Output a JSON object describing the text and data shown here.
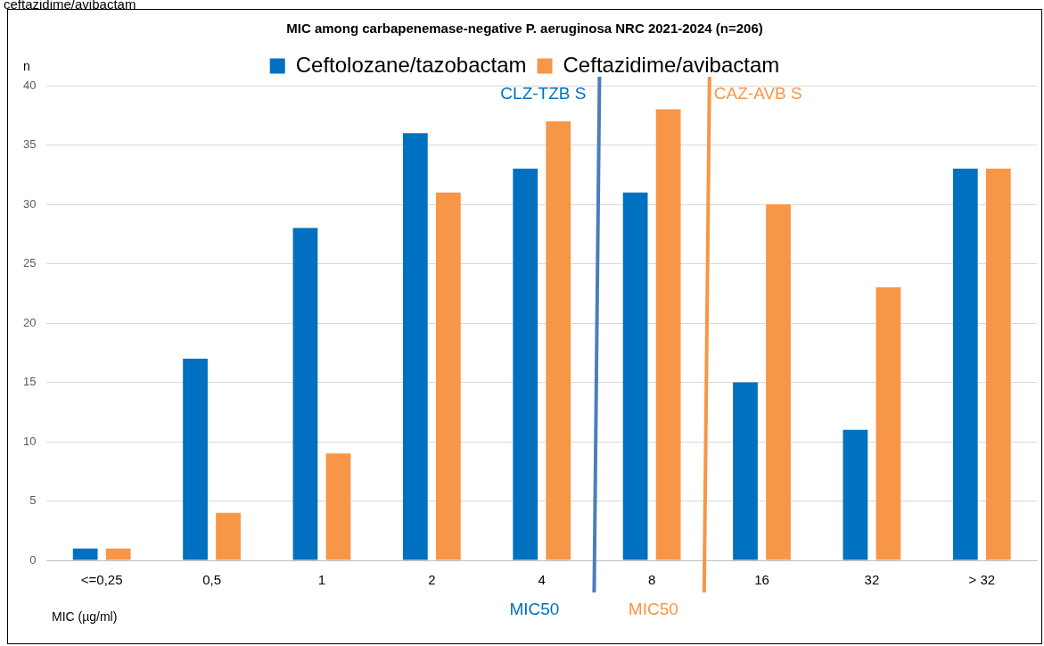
{
  "chart_data": {
    "type": "bar",
    "title": "MIC among carbapenemase-negative P. aeruginosa NRC 2021-2024 (n=206)",
    "xlabel": "MIC (µg/ml)",
    "ylabel": "n",
    "categories": [
      "<=0,25",
      "0,5",
      "1",
      "2",
      "4",
      "8",
      "16",
      "32",
      "> 32"
    ],
    "series": [
      {
        "name": "Ceftolozane/tazobactam",
        "color": "#0070c0",
        "values": [
          1,
          17,
          28,
          36,
          33,
          31,
          15,
          11,
          33
        ]
      },
      {
        "name": "Ceftazidime/avibactam",
        "color": "#f79646",
        "values": [
          1,
          4,
          9,
          31,
          37,
          38,
          30,
          23,
          33
        ]
      }
    ],
    "ylim": [
      0,
      40
    ],
    "yticks": [
      0,
      5,
      10,
      15,
      20,
      25,
      30,
      35,
      40
    ],
    "grid": "y",
    "legend": "top",
    "annotations": [
      "CLZ-TZB S",
      "CAZ-AVB S",
      "MIC50",
      "MIC50",
      "ceftazidime/avibactam"
    ]
  }
}
